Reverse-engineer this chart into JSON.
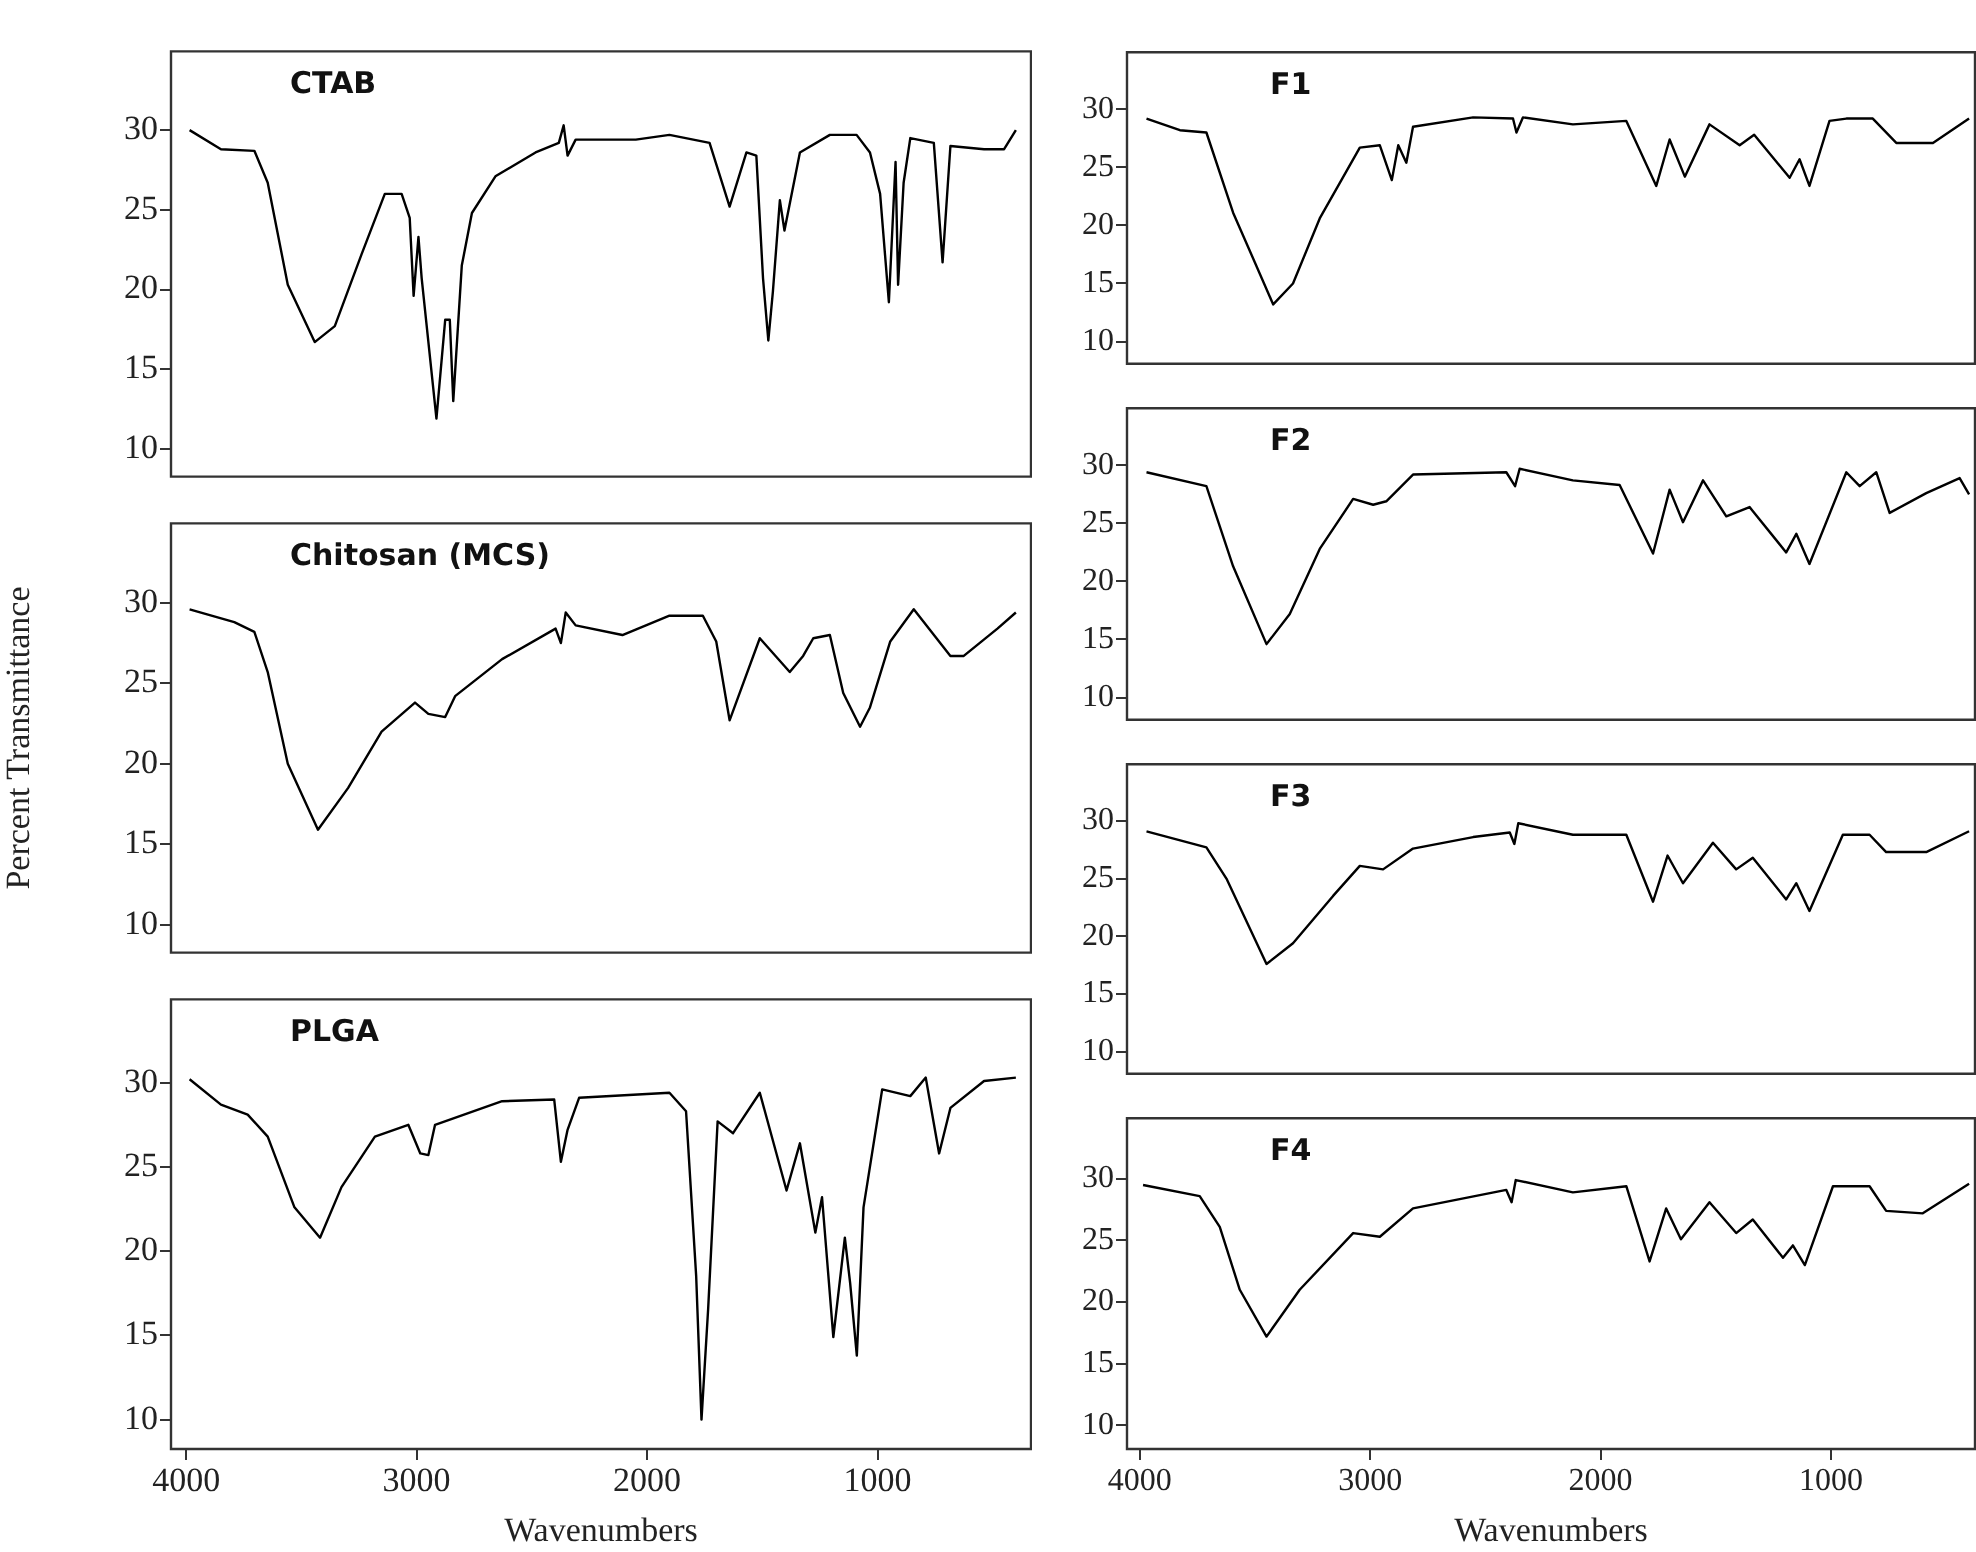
{
  "chart_data": [
    {
      "type": "line",
      "title": "CTAB",
      "color": "#000000",
      "marker": "none",
      "tick_labels": "y",
      "xlim": [
        4070,
        330
      ],
      "ylim": [
        8.2,
        35
      ],
      "yticks": [
        10,
        15,
        20,
        25,
        30
      ],
      "x": [
        3985,
        3849,
        3704,
        3646,
        3559,
        3442,
        3355,
        3239,
        3138,
        3065,
        3030,
        3013,
        2992,
        2978,
        2914,
        2876,
        2856,
        2841,
        2804,
        2760,
        2658,
        2484,
        2383,
        2362,
        2345,
        2310,
        2049,
        1903,
        1729,
        1642,
        1569,
        1526,
        1497,
        1474,
        1454,
        1424,
        1404,
        1337,
        1207,
        1091,
        1033,
        989,
        951,
        922,
        911,
        887,
        858,
        756,
        718,
        684,
        538,
        451,
        400
      ],
      "values": [
        30.0,
        28.8,
        28.7,
        26.7,
        20.3,
        16.7,
        17.7,
        22.2,
        26.0,
        26.0,
        24.5,
        19.6,
        23.3,
        20.7,
        11.9,
        18.1,
        18.1,
        13.0,
        21.5,
        24.8,
        27.1,
        28.6,
        29.2,
        30.3,
        28.4,
        29.4,
        29.4,
        29.7,
        29.2,
        25.2,
        28.6,
        28.4,
        20.7,
        16.8,
        19.9,
        25.6,
        23.7,
        28.6,
        29.7,
        29.7,
        28.6,
        26.0,
        19.2,
        28.0,
        20.3,
        26.7,
        29.5,
        29.2,
        21.7,
        29.0,
        28.8,
        28.8,
        30.0
      ]
    },
    {
      "type": "line",
      "title": "Chitosan (MCS)",
      "ylabel": "Percent Transmittance",
      "color": "#000000",
      "marker": "none",
      "tick_labels": "y",
      "xlim": [
        4070,
        330
      ],
      "ylim": [
        8.2,
        35
      ],
      "yticks": [
        10,
        15,
        20,
        25,
        30
      ],
      "x": [
        3985,
        3791,
        3704,
        3646,
        3559,
        3428,
        3297,
        3152,
        3007,
        2949,
        2876,
        2833,
        2629,
        2397,
        2374,
        2353,
        2310,
        2107,
        1903,
        1758,
        1700,
        1642,
        1511,
        1381,
        1323,
        1279,
        1207,
        1149,
        1076,
        1033,
        945,
        843,
        684,
        626,
        480,
        400
      ],
      "values": [
        29.6,
        28.8,
        28.2,
        25.7,
        20.0,
        15.9,
        18.5,
        22.0,
        23.8,
        23.1,
        22.9,
        24.2,
        26.5,
        28.4,
        27.5,
        29.4,
        28.6,
        28.0,
        29.2,
        29.2,
        27.6,
        22.7,
        27.8,
        25.7,
        26.7,
        27.8,
        28.0,
        24.4,
        22.3,
        23.5,
        27.6,
        29.6,
        26.7,
        26.7,
        28.4,
        29.4
      ]
    },
    {
      "type": "line",
      "title": "PLGA",
      "xlabel": "Wavenumbers",
      "color": "#000000",
      "marker": "none",
      "xlim": [
        4070,
        330
      ],
      "xticks": [
        4000,
        3000,
        2000,
        1000
      ],
      "ylim": [
        8.2,
        35
      ],
      "yticks": [
        10,
        15,
        20,
        25,
        30
      ],
      "x": [
        3985,
        3849,
        3733,
        3646,
        3530,
        3419,
        3326,
        3181,
        3036,
        2984,
        2949,
        2920,
        2629,
        2403,
        2374,
        2345,
        2295,
        1903,
        1831,
        1787,
        1764,
        1735,
        1694,
        1627,
        1511,
        1395,
        1337,
        1270,
        1241,
        1192,
        1142,
        1119,
        1090,
        1061,
        980,
        858,
        791,
        733,
        684,
        538,
        400
      ],
      "values": [
        30.2,
        28.7,
        28.1,
        26.8,
        22.6,
        20.8,
        23.8,
        26.8,
        27.5,
        25.8,
        25.7,
        27.5,
        28.9,
        29.0,
        25.3,
        27.2,
        29.1,
        29.4,
        28.3,
        18.5,
        10.0,
        16.6,
        27.7,
        27.0,
        29.4,
        23.6,
        26.4,
        21.1,
        23.2,
        14.9,
        20.8,
        18.1,
        13.8,
        22.6,
        29.6,
        29.2,
        30.3,
        25.8,
        28.5,
        30.1,
        30.3
      ]
    },
    {
      "type": "line",
      "title": "F1",
      "color": "#000000",
      "marker": "none",
      "tick_labels": "y",
      "xlim": [
        4060,
        370
      ],
      "ylim": [
        8,
        35
      ],
      "yticks": [
        10,
        15,
        20,
        25,
        30
      ],
      "x": [
        3971,
        3826,
        3711,
        3595,
        3421,
        3335,
        3219,
        3045,
        2958,
        2906,
        2878,
        2843,
        2814,
        2553,
        2380,
        2365,
        2337,
        2120,
        1888,
        1758,
        1700,
        1634,
        1527,
        1396,
        1333,
        1179,
        1136,
        1093,
        1006,
        933,
        818,
        716,
        557,
        400
      ],
      "values": [
        29.2,
        28.2,
        28.0,
        21.1,
        13.2,
        15.0,
        20.6,
        26.7,
        26.9,
        23.9,
        26.9,
        25.4,
        28.5,
        29.3,
        29.2,
        28.0,
        29.3,
        28.7,
        29.0,
        23.4,
        27.4,
        24.2,
        28.7,
        26.9,
        27.8,
        24.1,
        25.7,
        23.4,
        29.0,
        29.2,
        29.2,
        27.1,
        27.1,
        29.2
      ]
    },
    {
      "type": "line",
      "title": "F2",
      "color": "#000000",
      "marker": "none",
      "tick_labels": "y",
      "xlim": [
        4060,
        370
      ],
      "ylim": [
        8,
        35
      ],
      "yticks": [
        10,
        15,
        20,
        25,
        30
      ],
      "x": [
        3971,
        3711,
        3595,
        3450,
        3349,
        3219,
        3074,
        2987,
        2930,
        2814,
        2409,
        2371,
        2351,
        2120,
        1917,
        1772,
        1700,
        1642,
        1555,
        1454,
        1353,
        1194,
        1150,
        1093,
        933,
        875,
        803,
        745,
        586,
        441,
        400
      ],
      "values": [
        29.4,
        28.2,
        21.3,
        14.6,
        17.2,
        22.8,
        27.1,
        26.6,
        26.9,
        29.2,
        29.4,
        28.2,
        29.7,
        28.7,
        28.3,
        22.4,
        27.9,
        25.1,
        28.7,
        25.6,
        26.4,
        22.5,
        24.1,
        21.5,
        29.4,
        28.2,
        29.4,
        25.9,
        27.6,
        28.9,
        27.5
      ]
    },
    {
      "type": "line",
      "title": "F3",
      "color": "#000000",
      "marker": "none",
      "tick_labels": "y",
      "xlim": [
        4060,
        370
      ],
      "ylim": [
        8,
        35
      ],
      "yticks": [
        10,
        15,
        20,
        25,
        30
      ],
      "x": [
        3971,
        3711,
        3624,
        3450,
        3335,
        3161,
        3045,
        2944,
        2814,
        2553,
        2394,
        2374,
        2357,
        2120,
        1888,
        1772,
        1709,
        1642,
        1512,
        1411,
        1339,
        1194,
        1150,
        1093,
        948,
        832,
        760,
        586,
        400
      ],
      "values": [
        29.1,
        27.7,
        25.0,
        17.6,
        19.4,
        23.5,
        26.1,
        25.8,
        27.6,
        28.6,
        29.0,
        28.0,
        29.8,
        28.8,
        28.8,
        23.0,
        27.0,
        24.6,
        28.1,
        25.8,
        26.8,
        23.2,
        24.6,
        22.2,
        28.8,
        28.8,
        27.3,
        27.3,
        29.1
      ]
    },
    {
      "type": "line",
      "title": "F4",
      "xlabel": "Wavenumbers",
      "color": "#000000",
      "marker": "none",
      "xlim": [
        4060,
        370
      ],
      "xticks": [
        4000,
        3000,
        2000,
        1000
      ],
      "ylim": [
        8,
        35
      ],
      "yticks": [
        10,
        15,
        20,
        25,
        30
      ],
      "x": [
        3986,
        3740,
        3653,
        3566,
        3450,
        3306,
        3074,
        2958,
        2814,
        2409,
        2386,
        2368,
        2120,
        1888,
        1787,
        1715,
        1651,
        1527,
        1411,
        1339,
        1208,
        1165,
        1113,
        991,
        832,
        760,
        601,
        400
      ],
      "values": [
        29.5,
        28.6,
        26.1,
        21.0,
        17.2,
        21.0,
        25.6,
        25.3,
        27.6,
        29.1,
        28.1,
        29.9,
        28.9,
        29.4,
        23.3,
        27.6,
        25.1,
        28.1,
        25.6,
        26.7,
        23.6,
        24.6,
        23.0,
        29.4,
        29.4,
        27.4,
        27.2,
        29.6
      ]
    }
  ]
}
